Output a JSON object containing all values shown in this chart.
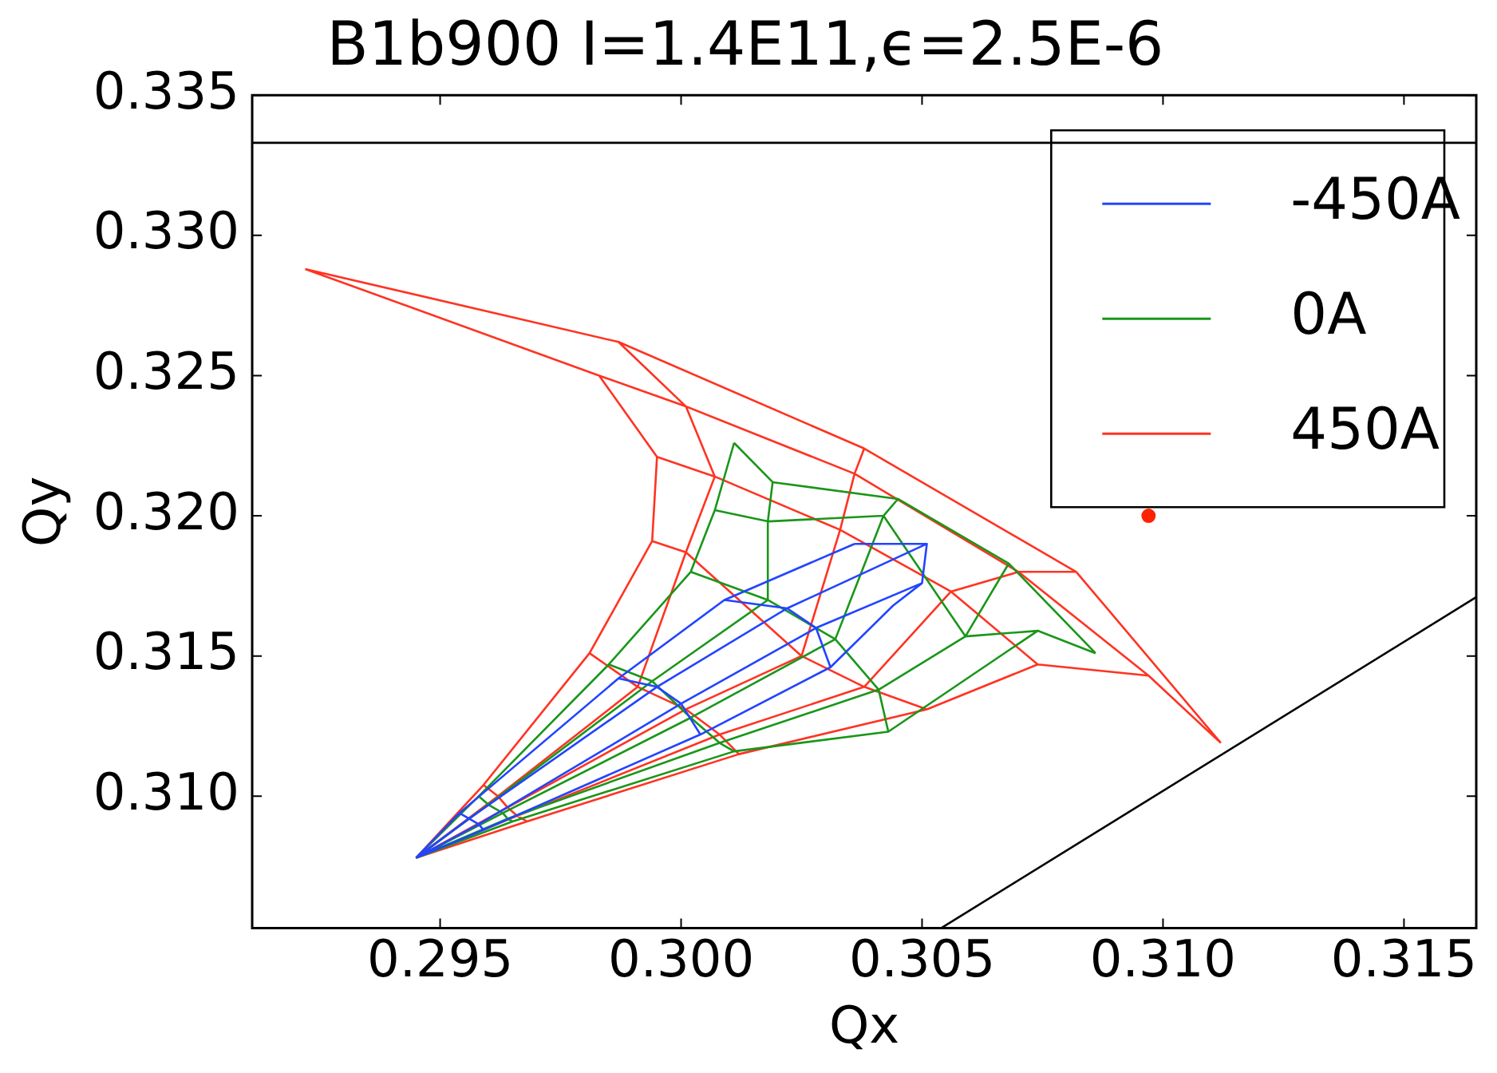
{
  "chart_data": {
    "type": "line",
    "title": "B1b900 I=1.4E11,ϵ=2.5E-6",
    "xlabel": "Qx",
    "ylabel": "Qy",
    "xlim": [
      0.2911,
      0.3165
    ],
    "xticks": [
      0.295,
      {
        "value": 0.3,
        "label": "0.300"
      },
      0.305,
      {
        "value": 0.31,
        "label": "0.310"
      },
      0.315
    ],
    "ylim": [
      0.3053,
      0.335
    ],
    "yticks": [
      {
        "value": 0.31,
        "label": "0.310"
      },
      0.315,
      {
        "value": 0.32,
        "label": "0.320"
      },
      0.325,
      {
        "value": 0.33,
        "label": "0.330"
      },
      0.335
    ],
    "legend": "top right",
    "grid": false,
    "ref_lines": [
      {
        "axis": "y",
        "value": 0.3333,
        "color": "#000000"
      }
    ],
    "series": [
      {
        "name": "-450A",
        "color": "#2244ff",
        "x": [
          0.2945,
          0.2954,
          0.2987,
          0.3009,
          0.3036,
          null,
          0.2945,
          0.2956,
          0.2995,
          0.3022,
          0.3051,
          null,
          0.2945,
          0.2958,
          0.3,
          0.3028,
          0.305,
          null,
          0.2945,
          0.2959,
          0.3004,
          0.3031,
          0.3044,
          null,
          0.2954,
          0.2956,
          0.2958,
          0.2959,
          null,
          0.2987,
          0.2995,
          0.3,
          0.3004,
          null,
          0.3009,
          0.3022,
          0.3028,
          0.3031,
          null,
          0.3036,
          0.3051,
          0.305,
          0.3044
        ],
        "values": [
          0.3078,
          0.3094,
          0.3142,
          0.317,
          0.319,
          null,
          0.3078,
          0.3092,
          0.3139,
          0.3167,
          0.319,
          null,
          0.3078,
          0.309,
          0.3133,
          0.316,
          0.3176,
          null,
          0.3078,
          0.3088,
          0.3122,
          0.3146,
          0.3168,
          null,
          0.3094,
          0.3092,
          0.309,
          0.3088,
          null,
          0.3142,
          0.3139,
          0.3133,
          0.3122,
          null,
          0.317,
          0.3167,
          0.316,
          0.3146,
          null,
          0.319,
          0.319,
          0.3176,
          0.3168
        ]
      },
      {
        "name": "0A",
        "color": "#1a961a",
        "x": [
          0.2945,
          0.2958,
          0.2985,
          0.3002,
          0.3007,
          0.3011,
          null,
          0.2945,
          0.296,
          0.2994,
          0.3018,
          0.3018,
          0.3019,
          null,
          0.2945,
          0.2963,
          0.3002,
          0.3032,
          0.3042,
          0.3045,
          null,
          0.2945,
          0.2964,
          0.3008,
          0.3041,
          0.3059,
          0.3068,
          null,
          0.2945,
          0.2965,
          0.3011,
          0.3043,
          0.3074,
          0.3086,
          null,
          0.2958,
          0.296,
          0.2963,
          0.2964,
          0.2965,
          null,
          0.2985,
          0.2994,
          0.3002,
          0.3008,
          0.3011,
          null,
          0.3002,
          0.3018,
          0.3032,
          0.3041,
          0.3043,
          null,
          0.3007,
          0.3018,
          0.3042,
          0.3059,
          0.3074,
          null,
          0.3011,
          0.3019,
          0.3045,
          0.3068,
          0.3086
        ],
        "values": [
          0.3078,
          0.31,
          0.3147,
          0.318,
          0.3202,
          0.3226,
          null,
          0.3078,
          0.3097,
          0.3141,
          0.317,
          0.3198,
          0.3212,
          null,
          0.3078,
          0.3094,
          0.3128,
          0.3156,
          0.32,
          0.3206,
          null,
          0.3078,
          0.3092,
          0.3119,
          0.3138,
          0.3157,
          0.3183,
          null,
          0.3078,
          0.3091,
          0.3116,
          0.3123,
          0.3159,
          0.3151,
          null,
          0.31,
          0.3097,
          0.3094,
          0.3092,
          0.3091,
          null,
          0.3147,
          0.3141,
          0.3128,
          0.3119,
          0.3116,
          null,
          0.318,
          0.317,
          0.3156,
          0.3138,
          0.3123,
          null,
          0.3202,
          0.3198,
          0.32,
          0.3157,
          0.3159,
          null,
          0.3226,
          0.3212,
          0.3206,
          0.3183,
          0.3151
        ]
      },
      {
        "name": "450A",
        "color": "#ff3322",
        "x": [
          0.2945,
          0.2959,
          0.2981,
          0.2994,
          0.2995,
          0.2983,
          0.2922,
          null,
          0.2945,
          0.2962,
          0.2991,
          0.3001,
          0.3007,
          0.3001,
          0.2987,
          null,
          0.2945,
          0.2964,
          0.3001,
          0.3025,
          0.3033,
          0.3036,
          0.3038,
          null,
          0.2945,
          0.2966,
          0.3008,
          0.3038,
          0.3056,
          0.307,
          0.3082,
          null,
          0.2945,
          0.2968,
          0.3012,
          0.3051,
          0.3074,
          0.3097,
          0.3112,
          null,
          0.2959,
          0.2962,
          0.2964,
          0.2966,
          0.2968,
          null,
          0.2981,
          0.2991,
          0.3001,
          0.3008,
          0.3012,
          null,
          0.2994,
          0.3001,
          0.3025,
          0.3038,
          0.3051,
          null,
          0.2995,
          0.3007,
          0.3033,
          0.3056,
          0.3074,
          null,
          0.2983,
          0.3001,
          0.3036,
          0.307,
          0.3097,
          null,
          0.2922,
          0.2987,
          0.3038,
          0.3082,
          0.3112
        ],
        "values": [
          0.3078,
          0.3104,
          0.3151,
          0.3191,
          0.3221,
          0.325,
          0.3288,
          null,
          0.3078,
          0.31,
          0.3139,
          0.3187,
          0.3214,
          0.3239,
          0.3262,
          null,
          0.3078,
          0.3096,
          0.3131,
          0.315,
          0.3195,
          0.3215,
          0.3224,
          null,
          0.3078,
          0.3093,
          0.3122,
          0.3139,
          0.3173,
          0.318,
          0.318,
          null,
          0.3078,
          0.3091,
          0.3115,
          0.3131,
          0.3147,
          0.3143,
          0.3119,
          null,
          0.3104,
          0.31,
          0.3096,
          0.3093,
          0.3091,
          null,
          0.3151,
          0.3139,
          0.3131,
          0.3122,
          0.3115,
          null,
          0.3191,
          0.3187,
          0.315,
          0.3139,
          0.3131,
          null,
          0.3221,
          0.3214,
          0.3195,
          0.3173,
          0.3147,
          null,
          0.325,
          0.3239,
          0.3215,
          0.318,
          0.3143,
          null,
          0.3288,
          0.3262,
          0.3224,
          0.318,
          0.3119
        ]
      },
      {
        "type": "scatter",
        "color": "#ff2200",
        "x": [
          0.3097
        ],
        "values": [
          0.32
        ]
      },
      {
        "color": "#000000",
        "x": [
          0.3054,
          0.3165
        ],
        "values": [
          0.3053,
          0.3171
        ]
      }
    ]
  }
}
